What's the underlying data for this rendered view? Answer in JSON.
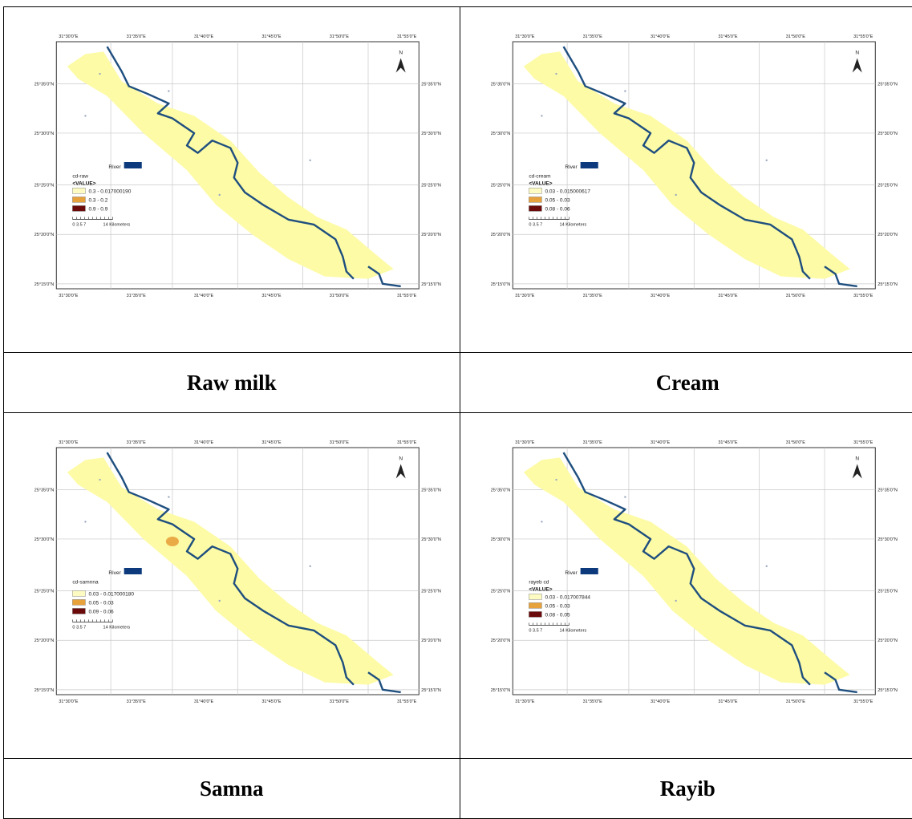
{
  "panels": [
    {
      "id": "raw-milk",
      "caption": "Raw milk",
      "layer_name": "cd-raw",
      "value_header": "<VALUE>",
      "classes": [
        "0.3 - 0.017000190",
        "0.3 - 0.2",
        "0.9 - 0.9"
      ],
      "hotspot": false
    },
    {
      "id": "cream",
      "caption": "Cream",
      "layer_name": "cd-cream",
      "value_header": "<VALUE>",
      "classes": [
        "0.03 - 0.015000617",
        "0.05 - 0.03",
        "0.08 - 0.06"
      ],
      "hotspot": false
    },
    {
      "id": "samna",
      "caption": "Samna",
      "layer_name": "cd-samnna",
      "value_header": "",
      "classes": [
        "0.03 - 0.017000180",
        "0.05 - 0.03",
        "0.09 - 0.06"
      ],
      "hotspot": true
    },
    {
      "id": "rayib",
      "caption": "Rayib",
      "layer_name": "rayeb cd",
      "value_header": "<VALUE>",
      "classes": [
        "0.03 - 0.017007844",
        "0.05 - 0.03",
        "0.08 - 0.05"
      ],
      "hotspot": false
    }
  ],
  "common": {
    "north": "N",
    "river_label": "River",
    "scale_numbers": "0  3.5  7",
    "scale_units": "14 Kilometers",
    "top_ticks": [
      "31°30'0\"E",
      "31°35'0\"E",
      "31°40'0\"E",
      "31°45'0\"E",
      "31°50'0\"E",
      "31°55'0\"E"
    ],
    "bottom_ticks": [
      "31°30'0\"E",
      "31°35'0\"E",
      "31°40'0\"E",
      "31°45'0\"E",
      "31°50'0\"E",
      "31°55'0\"E"
    ],
    "side_ticks": [
      "25°35'0\"N",
      "25°30'0\"N",
      "25°25'0\"N",
      "25°20'0\"N",
      "25°15'0\"N"
    ]
  },
  "colors": {
    "area_fill": "#fdfba6",
    "river": "#1f4f7f",
    "class_1": "#fdfbc2",
    "class_2": "#e8a23c",
    "class_3": "#6b0a0a",
    "river_swatch": "#0c3a7d",
    "hotspot": "#e8a23c"
  }
}
